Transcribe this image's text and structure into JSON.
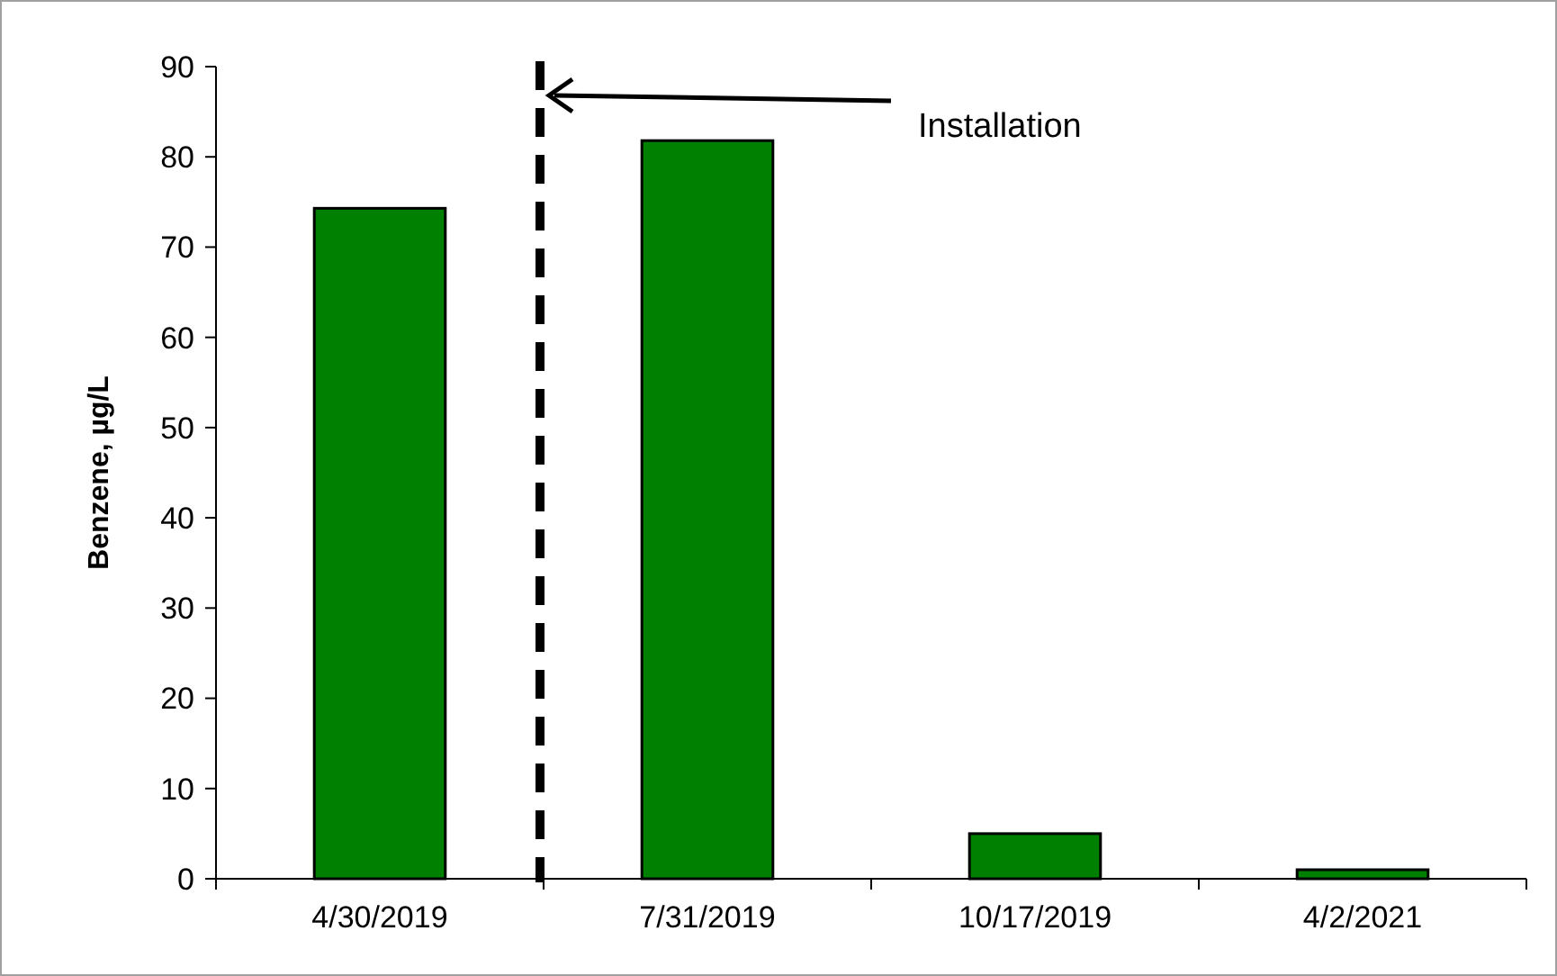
{
  "chart_data": {
    "type": "bar",
    "ylabel": "Benzene, µg/L",
    "categories": [
      "4/30/2019",
      "7/31/2019",
      "10/17/2019",
      "4/2/2021"
    ],
    "values": [
      74.3,
      81.8,
      5,
      1
    ],
    "color": "#008000",
    "ylim": [
      0,
      90
    ],
    "yticks": [
      0,
      10,
      20,
      30,
      40,
      50,
      60,
      70,
      80,
      90
    ],
    "annotations": [
      "Installation"
    ]
  }
}
